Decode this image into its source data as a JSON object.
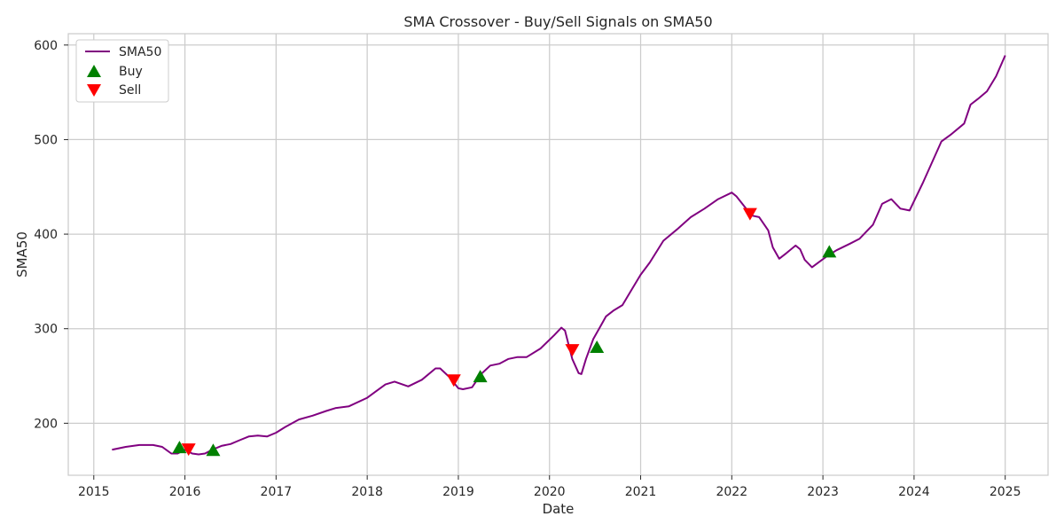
{
  "chart_data": {
    "type": "line",
    "title": "SMA Crossover - Buy/Sell Signals on SMA50",
    "xlabel": "Date",
    "ylabel": "SMA50",
    "xlim": [
      2014.72,
      2025.47
    ],
    "ylim": [
      145,
      612
    ],
    "xticks": [
      2015,
      2016,
      2017,
      2018,
      2019,
      2020,
      2021,
      2022,
      2023,
      2024,
      2025
    ],
    "yticks": [
      200,
      300,
      400,
      500,
      600
    ],
    "grid": true,
    "legend_position": "top-left",
    "colors": {
      "line": "#800080",
      "buy": "#008000",
      "sell": "#ff0000",
      "grid": "#cccccc",
      "spine": "#cccccc"
    },
    "series": [
      {
        "name": "SMA50",
        "x": [
          2015.2,
          2015.35,
          2015.5,
          2015.65,
          2015.75,
          2015.85,
          2015.92,
          2016.0,
          2016.08,
          2016.15,
          2016.22,
          2016.3,
          2016.4,
          2016.5,
          2016.6,
          2016.7,
          2016.8,
          2016.9,
          2017.0,
          2017.1,
          2017.25,
          2017.4,
          2017.55,
          2017.65,
          2017.8,
          2018.0,
          2018.1,
          2018.2,
          2018.3,
          2018.45,
          2018.6,
          2018.75,
          2018.8,
          2018.9,
          2019.0,
          2019.05,
          2019.15,
          2019.25,
          2019.35,
          2019.45,
          2019.55,
          2019.65,
          2019.75,
          2019.9,
          2020.05,
          2020.13,
          2020.17,
          2020.25,
          2020.32,
          2020.35,
          2020.4,
          2020.48,
          2020.55,
          2020.62,
          2020.7,
          2020.8,
          2020.9,
          2021.0,
          2021.1,
          2021.25,
          2021.4,
          2021.55,
          2021.7,
          2021.85,
          2022.0,
          2022.05,
          2022.15,
          2022.2,
          2022.3,
          2022.4,
          2022.45,
          2022.52,
          2022.6,
          2022.7,
          2022.75,
          2022.8,
          2022.88,
          2022.95,
          2023.05,
          2023.15,
          2023.3,
          2023.4,
          2023.55,
          2023.65,
          2023.75,
          2023.85,
          2023.95,
          2024.1,
          2024.3,
          2024.4,
          2024.55,
          2024.62,
          2024.7,
          2024.8,
          2024.9,
          2025.0
        ],
        "values": [
          172,
          175,
          177,
          177,
          175,
          168,
          168,
          172,
          168,
          167,
          168,
          172,
          176,
          178,
          182,
          186,
          187,
          186,
          190,
          196,
          204,
          208,
          213,
          216,
          218,
          227,
          234,
          241,
          244,
          239,
          246,
          258,
          258,
          249,
          237,
          236,
          238,
          252,
          261,
          263,
          268,
          270,
          270,
          279,
          293,
          301,
          298,
          268,
          253,
          252,
          268,
          289,
          301,
          313,
          319,
          325,
          341,
          357,
          370,
          393,
          405,
          418,
          427,
          437,
          444,
          440,
          428,
          420,
          418,
          404,
          386,
          374,
          380,
          388,
          384,
          373,
          365,
          370,
          377,
          383,
          390,
          395,
          410,
          432,
          437,
          427,
          425,
          455,
          498,
          505,
          517,
          537,
          543,
          551,
          567,
          589
        ]
      }
    ],
    "buy_signals": {
      "name": "Buy",
      "x": [
        2015.94,
        2016.31,
        2019.24,
        2020.52,
        2023.07
      ],
      "values": [
        174,
        171,
        249,
        280,
        381
      ]
    },
    "sell_signals": {
      "name": "Sell",
      "x": [
        2016.04,
        2018.95,
        2020.25,
        2022.2
      ],
      "values": [
        173,
        246,
        278,
        422
      ]
    }
  }
}
